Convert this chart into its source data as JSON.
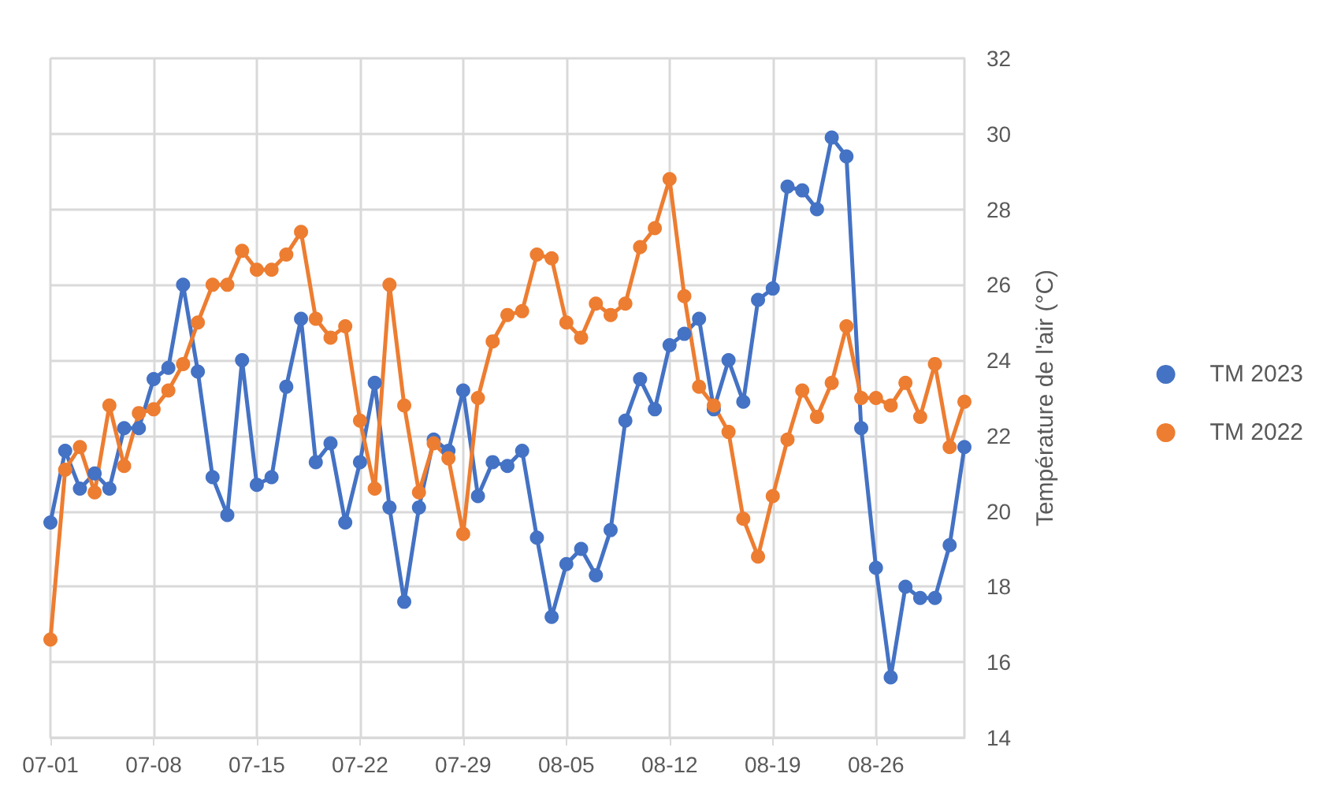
{
  "chart_data": {
    "type": "line",
    "ylabel": "Température de l'air (°C)",
    "categories": [
      "07-01",
      null,
      null,
      null,
      null,
      null,
      null,
      "07-08",
      null,
      null,
      null,
      null,
      null,
      null,
      "07-15",
      null,
      null,
      null,
      null,
      null,
      null,
      "07-22",
      null,
      null,
      null,
      null,
      null,
      null,
      "07-29",
      null,
      null,
      null,
      null,
      null,
      null,
      "08-05",
      null,
      null,
      null,
      null,
      null,
      null,
      "08-12",
      null,
      null,
      null,
      null,
      null,
      null,
      "08-19",
      null,
      null,
      null,
      null,
      null,
      null,
      "08-26",
      null,
      null,
      null,
      null,
      null,
      null
    ],
    "series": [
      {
        "name": "TM 2023",
        "color": "#4472c4",
        "values": [
          19.7,
          21.6,
          20.6,
          21.0,
          20.6,
          22.2,
          22.2,
          23.5,
          23.8,
          26.0,
          23.7,
          20.9,
          19.9,
          24.0,
          20.7,
          20.9,
          23.3,
          25.1,
          21.3,
          21.8,
          19.7,
          21.3,
          23.4,
          20.1,
          17.6,
          20.1,
          21.9,
          21.6,
          23.2,
          20.4,
          21.3,
          21.2,
          21.6,
          19.3,
          17.2,
          18.6,
          19.0,
          18.3,
          19.5,
          22.4,
          23.5,
          22.7,
          24.4,
          24.7,
          25.1,
          22.7,
          24.0,
          22.9,
          25.6,
          25.9,
          28.6,
          28.5,
          28.0,
          29.9,
          29.4,
          22.2,
          18.5,
          15.6,
          18.0,
          17.7,
          17.7,
          19.1,
          21.7
        ]
      },
      {
        "name": "TM 2022",
        "color": "#ed7d31",
        "values": [
          16.6,
          21.1,
          21.7,
          20.5,
          22.8,
          21.2,
          22.6,
          22.7,
          23.2,
          23.9,
          25.0,
          26.0,
          26.0,
          26.9,
          26.4,
          26.4,
          26.8,
          27.4,
          25.1,
          24.6,
          24.9,
          22.4,
          20.6,
          26.0,
          22.8,
          20.5,
          21.8,
          21.4,
          19.4,
          23.0,
          24.5,
          25.2,
          25.3,
          26.8,
          26.7,
          25.0,
          24.6,
          25.5,
          25.2,
          25.5,
          27.0,
          27.5,
          28.8,
          25.7,
          23.3,
          22.8,
          22.1,
          19.8,
          18.8,
          20.4,
          21.9,
          23.2,
          22.5,
          23.4,
          24.9,
          23.0,
          23.0,
          22.8,
          23.4,
          22.5,
          23.9,
          21.7,
          22.9
        ]
      }
    ],
    "ylim": [
      14,
      32
    ],
    "yticks": [
      14,
      16,
      18,
      20,
      22,
      24,
      26,
      28,
      30,
      32
    ],
    "grid": true,
    "legend": "right",
    "marker": "circle",
    "line_style": "solid"
  }
}
